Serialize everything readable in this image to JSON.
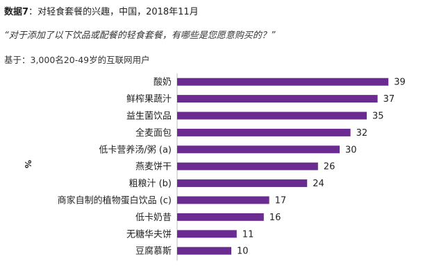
{
  "header": {
    "figure_label": "数据7",
    "figure_title": "对轻食套餐的兴趣，中国，2018年11月",
    "question": "“对于添加了以下饮品或配餐的轻食套餐，有哪些是您愿意购买的？”",
    "base": "基于：3,000名20-49岁的互联网用户"
  },
  "colors": {
    "bar": "#6B2C91",
    "axis": "#bbbbbb"
  },
  "chart_data": {
    "type": "bar",
    "orientation": "horizontal",
    "ylabel": "%",
    "categories": [
      "酸奶",
      "鲜榨果蔬汁",
      "益生菌饮品",
      "全麦面包",
      "低卡营养汤/粥 (a)",
      "燕麦饼干",
      "粗粮汁 (b)",
      "商家自制的植物蛋白饮品 (c)",
      "低卡奶昔",
      "无糖华夫饼",
      "豆腐慕斯"
    ],
    "values": [
      39,
      37,
      35,
      32,
      30,
      26,
      24,
      17,
      16,
      11,
      10
    ],
    "xlim": [
      0,
      40
    ],
    "grid": false,
    "legend": "none"
  }
}
